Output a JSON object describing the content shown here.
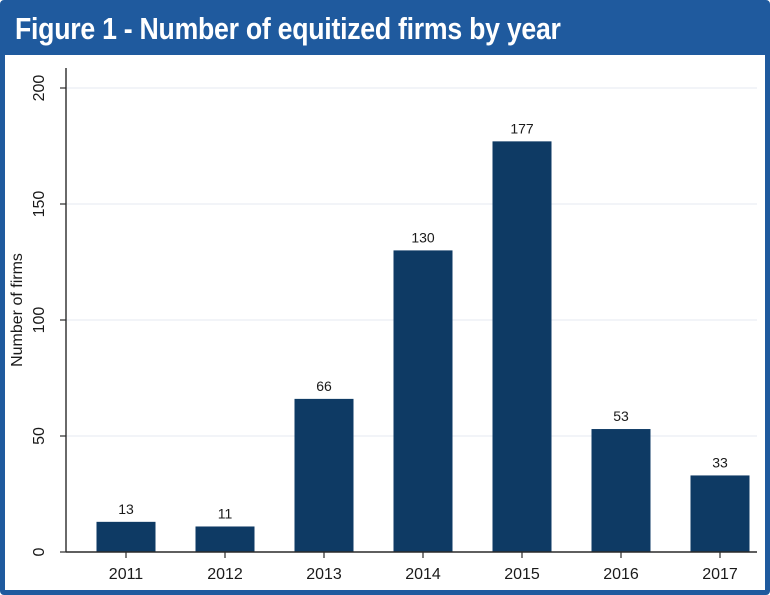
{
  "chart_data": {
    "type": "bar",
    "title": "Figure 1 - Number of equitized firms by year",
    "xlabel": "",
    "ylabel": "Number of firms",
    "categories": [
      "2011",
      "2012",
      "2013",
      "2014",
      "2015",
      "2016",
      "2017"
    ],
    "values": [
      13,
      11,
      66,
      130,
      177,
      53,
      33
    ],
    "data_labels": [
      "13",
      "11",
      "66",
      "130",
      "177",
      "53",
      "33"
    ],
    "ylim": [
      0,
      200
    ],
    "yticks": [
      0,
      50,
      100,
      150,
      200
    ],
    "grid": true,
    "legend": "none",
    "colors": {
      "bar": "#0e3a64",
      "title_bar": "#1f5a9e",
      "grid": "#e9eef4",
      "axis": "#2a2a2a"
    }
  }
}
